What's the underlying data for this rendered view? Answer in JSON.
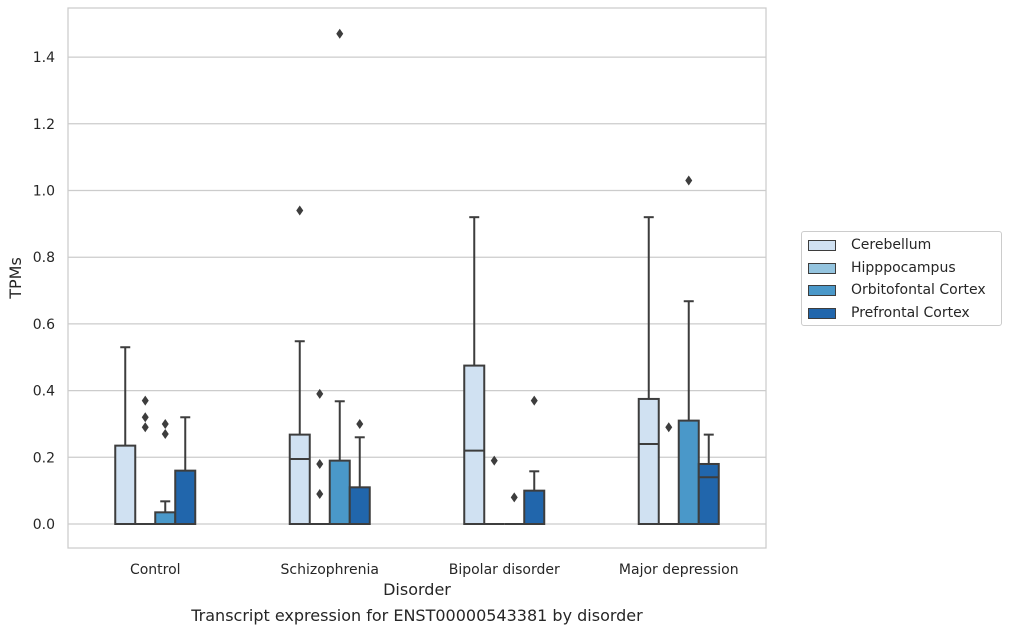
{
  "chart_data": {
    "type": "boxplot",
    "xlabel": "Disorder",
    "ylabel": "TPMs",
    "ylim": [
      -0.07,
      1.55
    ],
    "yticks": [
      "0.0",
      "0.2",
      "0.4",
      "0.6",
      "0.8",
      "1.0",
      "1.2",
      "1.4"
    ],
    "categories": [
      "Control",
      "Schizophrenia",
      "Bipolar disorder",
      "Major depression"
    ],
    "grid": "horizontal",
    "legend_position": "right",
    "series": [
      {
        "name": "Cerebellum",
        "color": "#d0e1f2",
        "boxes": [
          {
            "min": 0,
            "q1": 0,
            "median": 0,
            "q3": 0.235,
            "max": 0.53,
            "outliers": []
          },
          {
            "min": 0,
            "q1": 0,
            "median": 0.195,
            "q3": 0.268,
            "max": 0.548,
            "outliers": [
              0.94
            ]
          },
          {
            "min": 0,
            "q1": 0,
            "median": 0.22,
            "q3": 0.475,
            "max": 0.92,
            "outliers": []
          },
          {
            "min": 0,
            "q1": 0,
            "median": 0.24,
            "q3": 0.375,
            "max": 0.92,
            "outliers": []
          }
        ]
      },
      {
        "name": "Hipppocampus",
        "color": "#94c4df",
        "boxes": [
          {
            "min": 0,
            "q1": 0,
            "median": 0,
            "q3": 0,
            "max": 0,
            "outliers": [
              0.37,
              0.32,
              0.29
            ]
          },
          {
            "min": 0,
            "q1": 0,
            "median": 0,
            "q3": 0,
            "max": 0,
            "outliers": [
              0.39,
              0.18,
              0.09
            ]
          },
          {
            "min": 0,
            "q1": 0,
            "median": 0,
            "q3": 0,
            "max": 0,
            "outliers": [
              0.19
            ]
          },
          {
            "min": 0,
            "q1": 0,
            "median": 0,
            "q3": 0,
            "max": 0,
            "outliers": [
              0.29
            ]
          }
        ]
      },
      {
        "name": "Orbitofontal Cortex",
        "color": "#4a98c9",
        "boxes": [
          {
            "min": 0,
            "q1": 0,
            "median": 0,
            "q3": 0.035,
            "max": 0.068,
            "outliers": [
              0.3,
              0.27
            ]
          },
          {
            "min": 0,
            "q1": 0,
            "median": 0,
            "q3": 0.19,
            "max": 0.368,
            "outliers": [
              1.47
            ]
          },
          {
            "min": 0,
            "q1": 0,
            "median": 0,
            "q3": 0,
            "max": 0,
            "outliers": [
              0.08
            ]
          },
          {
            "min": 0,
            "q1": 0,
            "median": 0,
            "q3": 0.31,
            "max": 0.668,
            "outliers": [
              1.03
            ]
          }
        ]
      },
      {
        "name": "Prefrontal Cortex",
        "color": "#2166ac",
        "boxes": [
          {
            "min": 0,
            "q1": 0,
            "median": 0,
            "q3": 0.16,
            "max": 0.32,
            "outliers": []
          },
          {
            "min": 0,
            "q1": 0,
            "median": 0,
            "q3": 0.11,
            "max": 0.26,
            "outliers": [
              0.3
            ]
          },
          {
            "min": 0,
            "q1": 0,
            "median": 0,
            "q3": 0.1,
            "max": 0.158,
            "outliers": [
              0.37
            ]
          },
          {
            "min": 0,
            "q1": 0,
            "median": 0.14,
            "q3": 0.18,
            "max": 0.268,
            "outliers": []
          }
        ]
      }
    ],
    "caption": "Transcript expression for ENST00000543381 by disorder"
  }
}
